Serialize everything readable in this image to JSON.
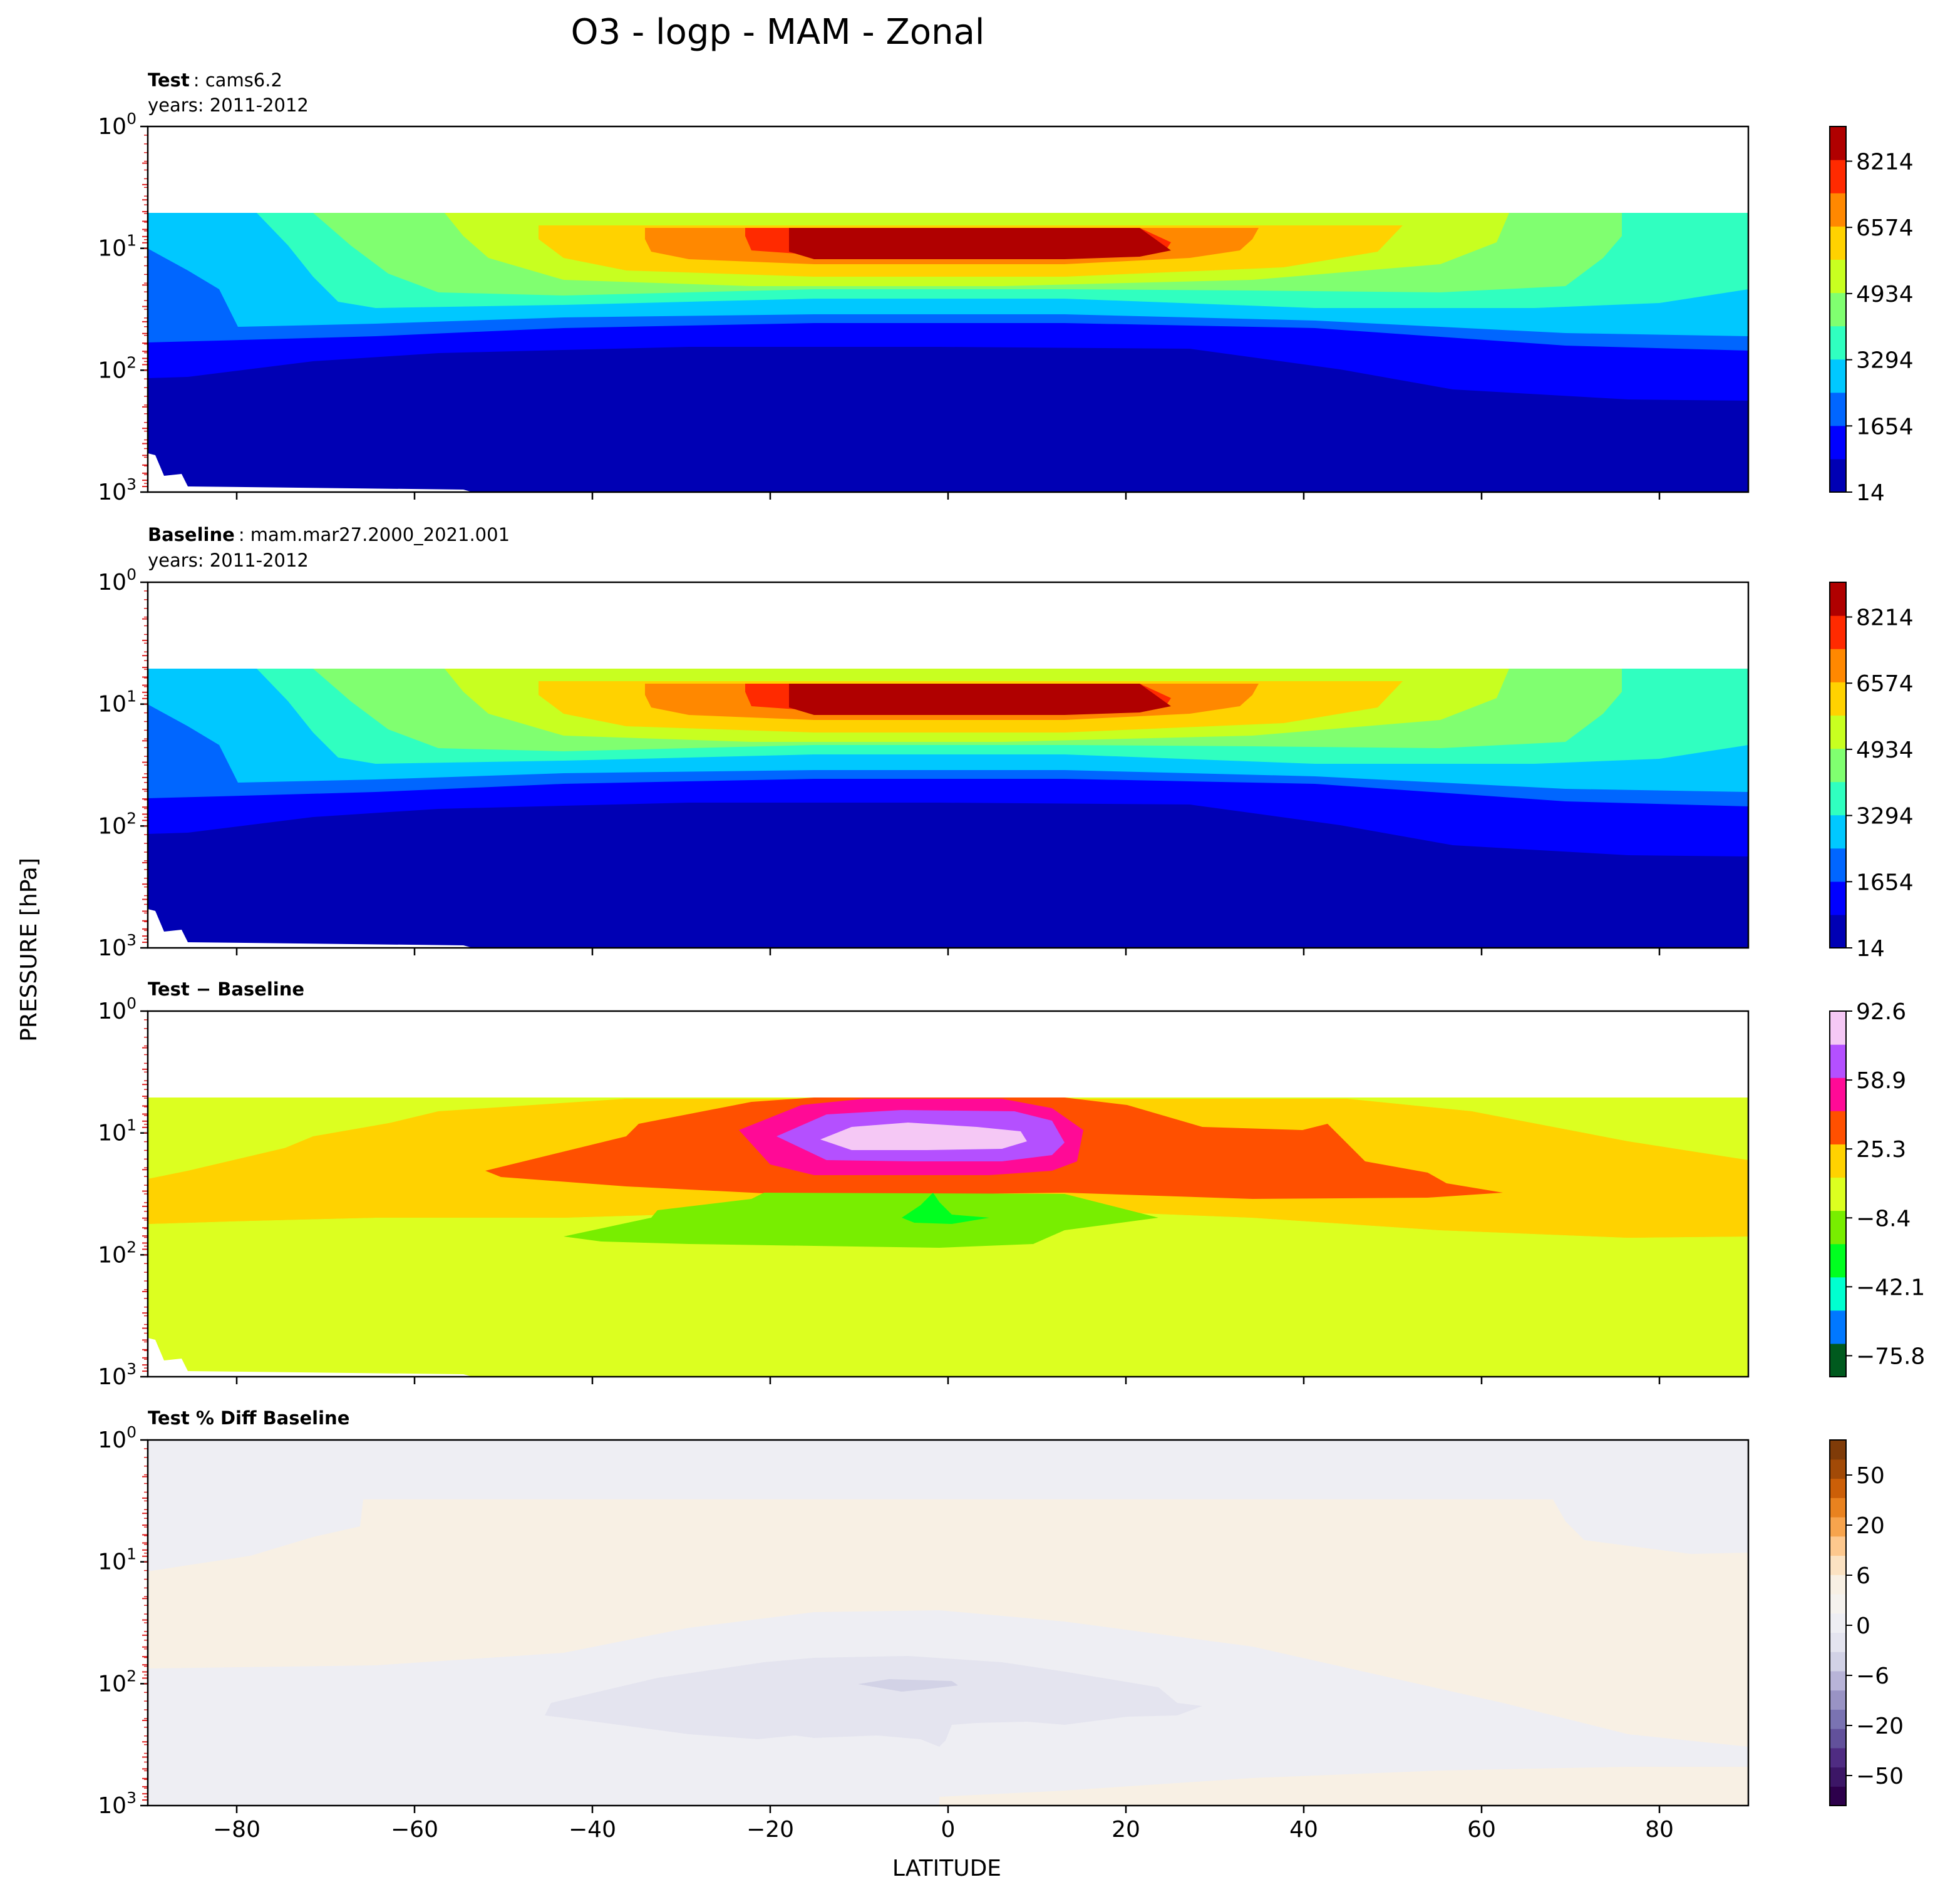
{
  "figure": {
    "title": "O3 - logp - MAM - Zonal",
    "xlabel": "LATITUDE",
    "ylabel": "PRESSURE [hPa]"
  },
  "chart_data": [
    {
      "type": "heatmap",
      "label_bold": "Test",
      "label_rest": ": cams6.2",
      "subtitle": "years: 2011-2012",
      "x_ticks": [
        -80,
        -60,
        -40,
        -20,
        0,
        20,
        40,
        60,
        80
      ],
      "xlim": [
        -90,
        90
      ],
      "y_scale": "log",
      "ylim": [
        1000,
        1
      ],
      "y_ticks": [
        "10^0",
        "10^1",
        "10^2",
        "10^3"
      ],
      "colorbar_ticks": [
        "14",
        "1654",
        "3294",
        "4934",
        "6574",
        "8214"
      ],
      "colorbar_colors": [
        "#0000b4",
        "#0000ff",
        "#0066ff",
        "#00c8ff",
        "#30ffc0",
        "#80ff70",
        "#c8ff20",
        "#ffd200",
        "#ff8800",
        "#ff2a00",
        "#b00000"
      ]
    },
    {
      "type": "heatmap",
      "label_bold": "Baseline",
      "label_rest": ": mam.mar27.2000_2021.001",
      "subtitle": "years: 2011-2012",
      "x_ticks": [
        -80,
        -60,
        -40,
        -20,
        0,
        20,
        40,
        60,
        80
      ],
      "xlim": [
        -90,
        90
      ],
      "y_scale": "log",
      "ylim": [
        1000,
        1
      ],
      "y_ticks": [
        "10^0",
        "10^1",
        "10^2",
        "10^3"
      ],
      "colorbar_ticks": [
        "14",
        "1654",
        "3294",
        "4934",
        "6574",
        "8214"
      ],
      "colorbar_colors": [
        "#0000b4",
        "#0000ff",
        "#0066ff",
        "#00c8ff",
        "#30ffc0",
        "#80ff70",
        "#c8ff20",
        "#ffd200",
        "#ff8800",
        "#ff2a00",
        "#b00000"
      ]
    },
    {
      "type": "heatmap",
      "label_bold": "Test − Baseline",
      "label_rest": "",
      "subtitle": "",
      "x_ticks": [
        -80,
        -60,
        -40,
        -20,
        0,
        20,
        40,
        60,
        80
      ],
      "xlim": [
        -90,
        90
      ],
      "y_scale": "log",
      "ylim": [
        1000,
        1
      ],
      "y_ticks": [
        "10^0",
        "10^1",
        "10^2",
        "10^3"
      ],
      "colorbar_ticks": [
        "92.6",
        "58.9",
        "25.3",
        "−8.4",
        "−42.1",
        "−75.8"
      ],
      "colorbar_colors": [
        "#005a1e",
        "#0078ff",
        "#00ffd0",
        "#00ff20",
        "#78ee00",
        "#dcff20",
        "#ffd200",
        "#ff5000",
        "#ff0a96",
        "#b450ff",
        "#f5c8f5"
      ]
    },
    {
      "type": "heatmap",
      "label_bold": "Test % Diff Baseline",
      "label_rest": "",
      "subtitle": "",
      "x_ticks": [
        -80,
        -60,
        -40,
        -20,
        0,
        20,
        40,
        60,
        80
      ],
      "xlim": [
        -90,
        90
      ],
      "y_scale": "log",
      "ylim": [
        1000,
        1
      ],
      "y_ticks": [
        "10^0",
        "10^1",
        "10^2",
        "10^3"
      ],
      "colorbar_ticks": [
        "50",
        "20",
        "6",
        "0",
        "−6",
        "−20",
        "−50"
      ],
      "colorbar_colors": [
        "#2d004b",
        "#3c1666",
        "#4f2c82",
        "#62519b",
        "#7a73b2",
        "#9993c4",
        "#b8b4d8",
        "#d2d2e6",
        "#e4e4ef",
        "#eeeef3",
        "#f5f2ee",
        "#f8f0e4",
        "#fbe2c2",
        "#fdc88e",
        "#f7a44d",
        "#e9821f",
        "#cc5f08",
        "#a24a07",
        "#7f3b08"
      ]
    }
  ]
}
